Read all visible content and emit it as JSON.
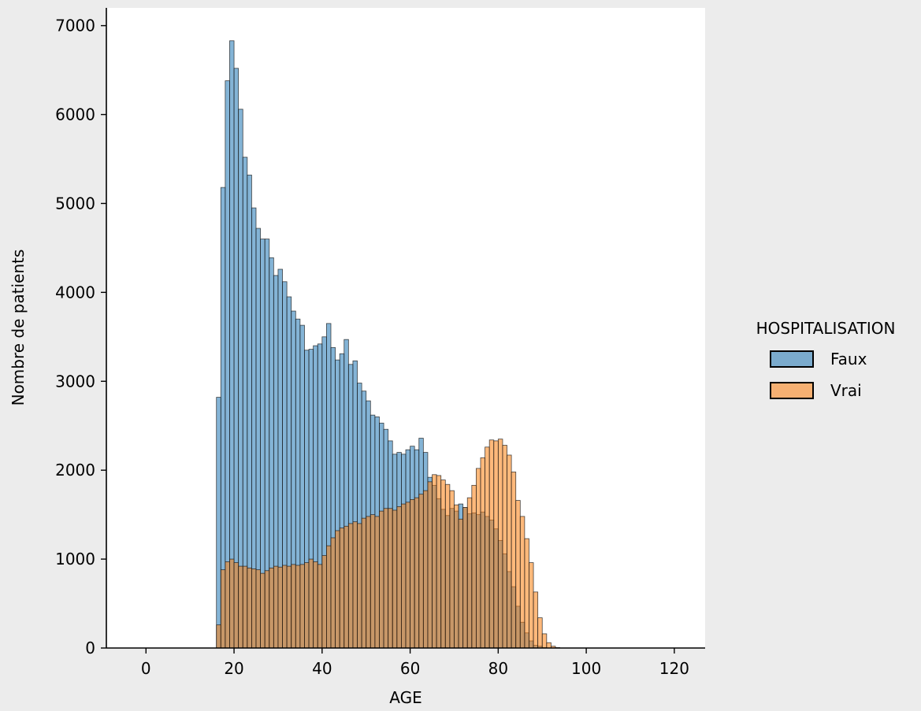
{
  "chart_data": {
    "type": "histogram",
    "xlabel": "AGE",
    "ylabel": "Nombre de patients",
    "xlim": [
      -9,
      127
    ],
    "ylim": [
      0,
      7200
    ],
    "x_ticks": [
      0,
      20,
      40,
      60,
      80,
      100,
      120
    ],
    "y_ticks": [
      0,
      1000,
      2000,
      3000,
      4000,
      5000,
      6000,
      7000
    ],
    "bin_start": 16,
    "bin_width": 1,
    "grid": false,
    "legend": {
      "title": "HOSPITALISATION",
      "placement": "right"
    },
    "series": [
      {
        "name": "Faux",
        "color": "#1f77b4",
        "values": [
          2820,
          5180,
          6380,
          6830,
          6520,
          6060,
          5520,
          5320,
          4950,
          4720,
          4600,
          4600,
          4390,
          4190,
          4260,
          4120,
          3950,
          3790,
          3700,
          3630,
          3350,
          3360,
          3400,
          3420,
          3500,
          3650,
          3380,
          3240,
          3310,
          3470,
          3190,
          3230,
          2980,
          2890,
          2780,
          2620,
          2600,
          2530,
          2460,
          2330,
          2180,
          2200,
          2180,
          2230,
          2270,
          2230,
          2360,
          2200,
          1920,
          1830,
          1680,
          1560,
          1490,
          1570,
          1540,
          1620,
          1580,
          1510,
          1520,
          1500,
          1530,
          1480,
          1440,
          1340,
          1210,
          1060,
          860,
          690,
          470,
          290,
          170,
          80,
          30,
          20,
          5
        ]
      },
      {
        "name": "Vrai",
        "color": "#ff7f0e",
        "values": [
          260,
          880,
          970,
          1000,
          960,
          920,
          920,
          900,
          890,
          880,
          840,
          870,
          900,
          920,
          910,
          930,
          920,
          940,
          930,
          940,
          960,
          1000,
          970,
          940,
          1040,
          1150,
          1240,
          1320,
          1350,
          1370,
          1400,
          1420,
          1400,
          1460,
          1480,
          1500,
          1480,
          1540,
          1570,
          1570,
          1550,
          1590,
          1620,
          1640,
          1670,
          1690,
          1730,
          1770,
          1870,
          1950,
          1940,
          1890,
          1840,
          1770,
          1610,
          1450,
          1580,
          1690,
          1830,
          2020,
          2140,
          2260,
          2340,
          2330,
          2350,
          2280,
          2170,
          1980,
          1660,
          1480,
          1230,
          960,
          630,
          340,
          160,
          60,
          20,
          5
        ]
      }
    ]
  }
}
